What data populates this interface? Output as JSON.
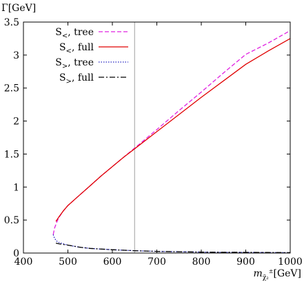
{
  "chart_data": {
    "type": "line",
    "ylabel": "Γ[GeV]",
    "xlabel_main": "m",
    "xlabel_subscript": "χ̃₂",
    "xlabel_superscript": "±",
    "xlabel_unit": "[GeV]",
    "xlim": [
      400,
      1000
    ],
    "ylim": [
      0,
      3.5
    ],
    "xticks": [
      400,
      500,
      600,
      700,
      800,
      900,
      1000
    ],
    "yticks": [
      0,
      0.5,
      1,
      1.5,
      2,
      2.5,
      3,
      3.5
    ],
    "xtick_labels": [
      "400",
      "500",
      "600",
      "700",
      "800",
      "900",
      "1000"
    ],
    "ytick_labels": [
      "0",
      "0.5",
      "1",
      "1.5",
      "2",
      "2.5",
      "3",
      "3.5"
    ],
    "vertical_line_x": 650,
    "horizontal_line_y": 0,
    "grid": false,
    "legend_position": "top-left",
    "series": [
      {
        "name": "S<, tree",
        "label_base": "S",
        "label_sub": "<",
        "label_suffix": ", tree",
        "color": "#e020e0",
        "dash": "6,3",
        "x": [
          467,
          470,
          475,
          480,
          490,
          500,
          525,
          550,
          575,
          600,
          625,
          650,
          700,
          750,
          800,
          850,
          900,
          950,
          1000
        ],
        "y": [
          0.28,
          0.38,
          0.47,
          0.54,
          0.64,
          0.72,
          0.87,
          1.02,
          1.17,
          1.31,
          1.45,
          1.59,
          1.87,
          2.16,
          2.44,
          2.73,
          3.01,
          3.18,
          3.37
        ]
      },
      {
        "name": "S<, full",
        "label_base": "S",
        "label_sub": "<",
        "label_suffix": ", full",
        "color": "#e00000",
        "dash": "",
        "x": [
          473,
          480,
          490,
          500,
          525,
          550,
          575,
          600,
          625,
          650,
          700,
          750,
          800,
          850,
          900,
          950,
          1000
        ],
        "y": [
          0.48,
          0.55,
          0.64,
          0.72,
          0.87,
          1.02,
          1.17,
          1.31,
          1.45,
          1.58,
          1.84,
          2.1,
          2.36,
          2.61,
          2.86,
          3.06,
          3.25
        ]
      },
      {
        "name": "S>, tree",
        "label_base": "S",
        "label_sub": ">",
        "label_suffix": ", tree",
        "color": "#2020c0",
        "dash": "1.5,2",
        "x": [
          467,
          470,
          475,
          480,
          490,
          500,
          525,
          550,
          600,
          650,
          700,
          750,
          800,
          850,
          900,
          950,
          1000
        ],
        "y": [
          0.28,
          0.22,
          0.18,
          0.16,
          0.14,
          0.12,
          0.09,
          0.07,
          0.05,
          0.035,
          0.025,
          0.02,
          0.015,
          0.012,
          0.01,
          0.008,
          0.006
        ]
      },
      {
        "name": "S>, full",
        "label_base": "S",
        "label_sub": ">",
        "label_suffix": ", full",
        "color": "#000000",
        "dash": "8,3,2,3",
        "x": [
          473,
          480,
          490,
          500,
          525,
          550,
          600,
          650,
          700,
          750,
          800,
          850,
          900,
          950,
          1000
        ],
        "y": [
          0.15,
          0.14,
          0.13,
          0.12,
          0.09,
          0.07,
          0.05,
          0.035,
          0.025,
          0.02,
          0.015,
          0.012,
          0.01,
          0.008,
          0.006
        ]
      }
    ]
  }
}
